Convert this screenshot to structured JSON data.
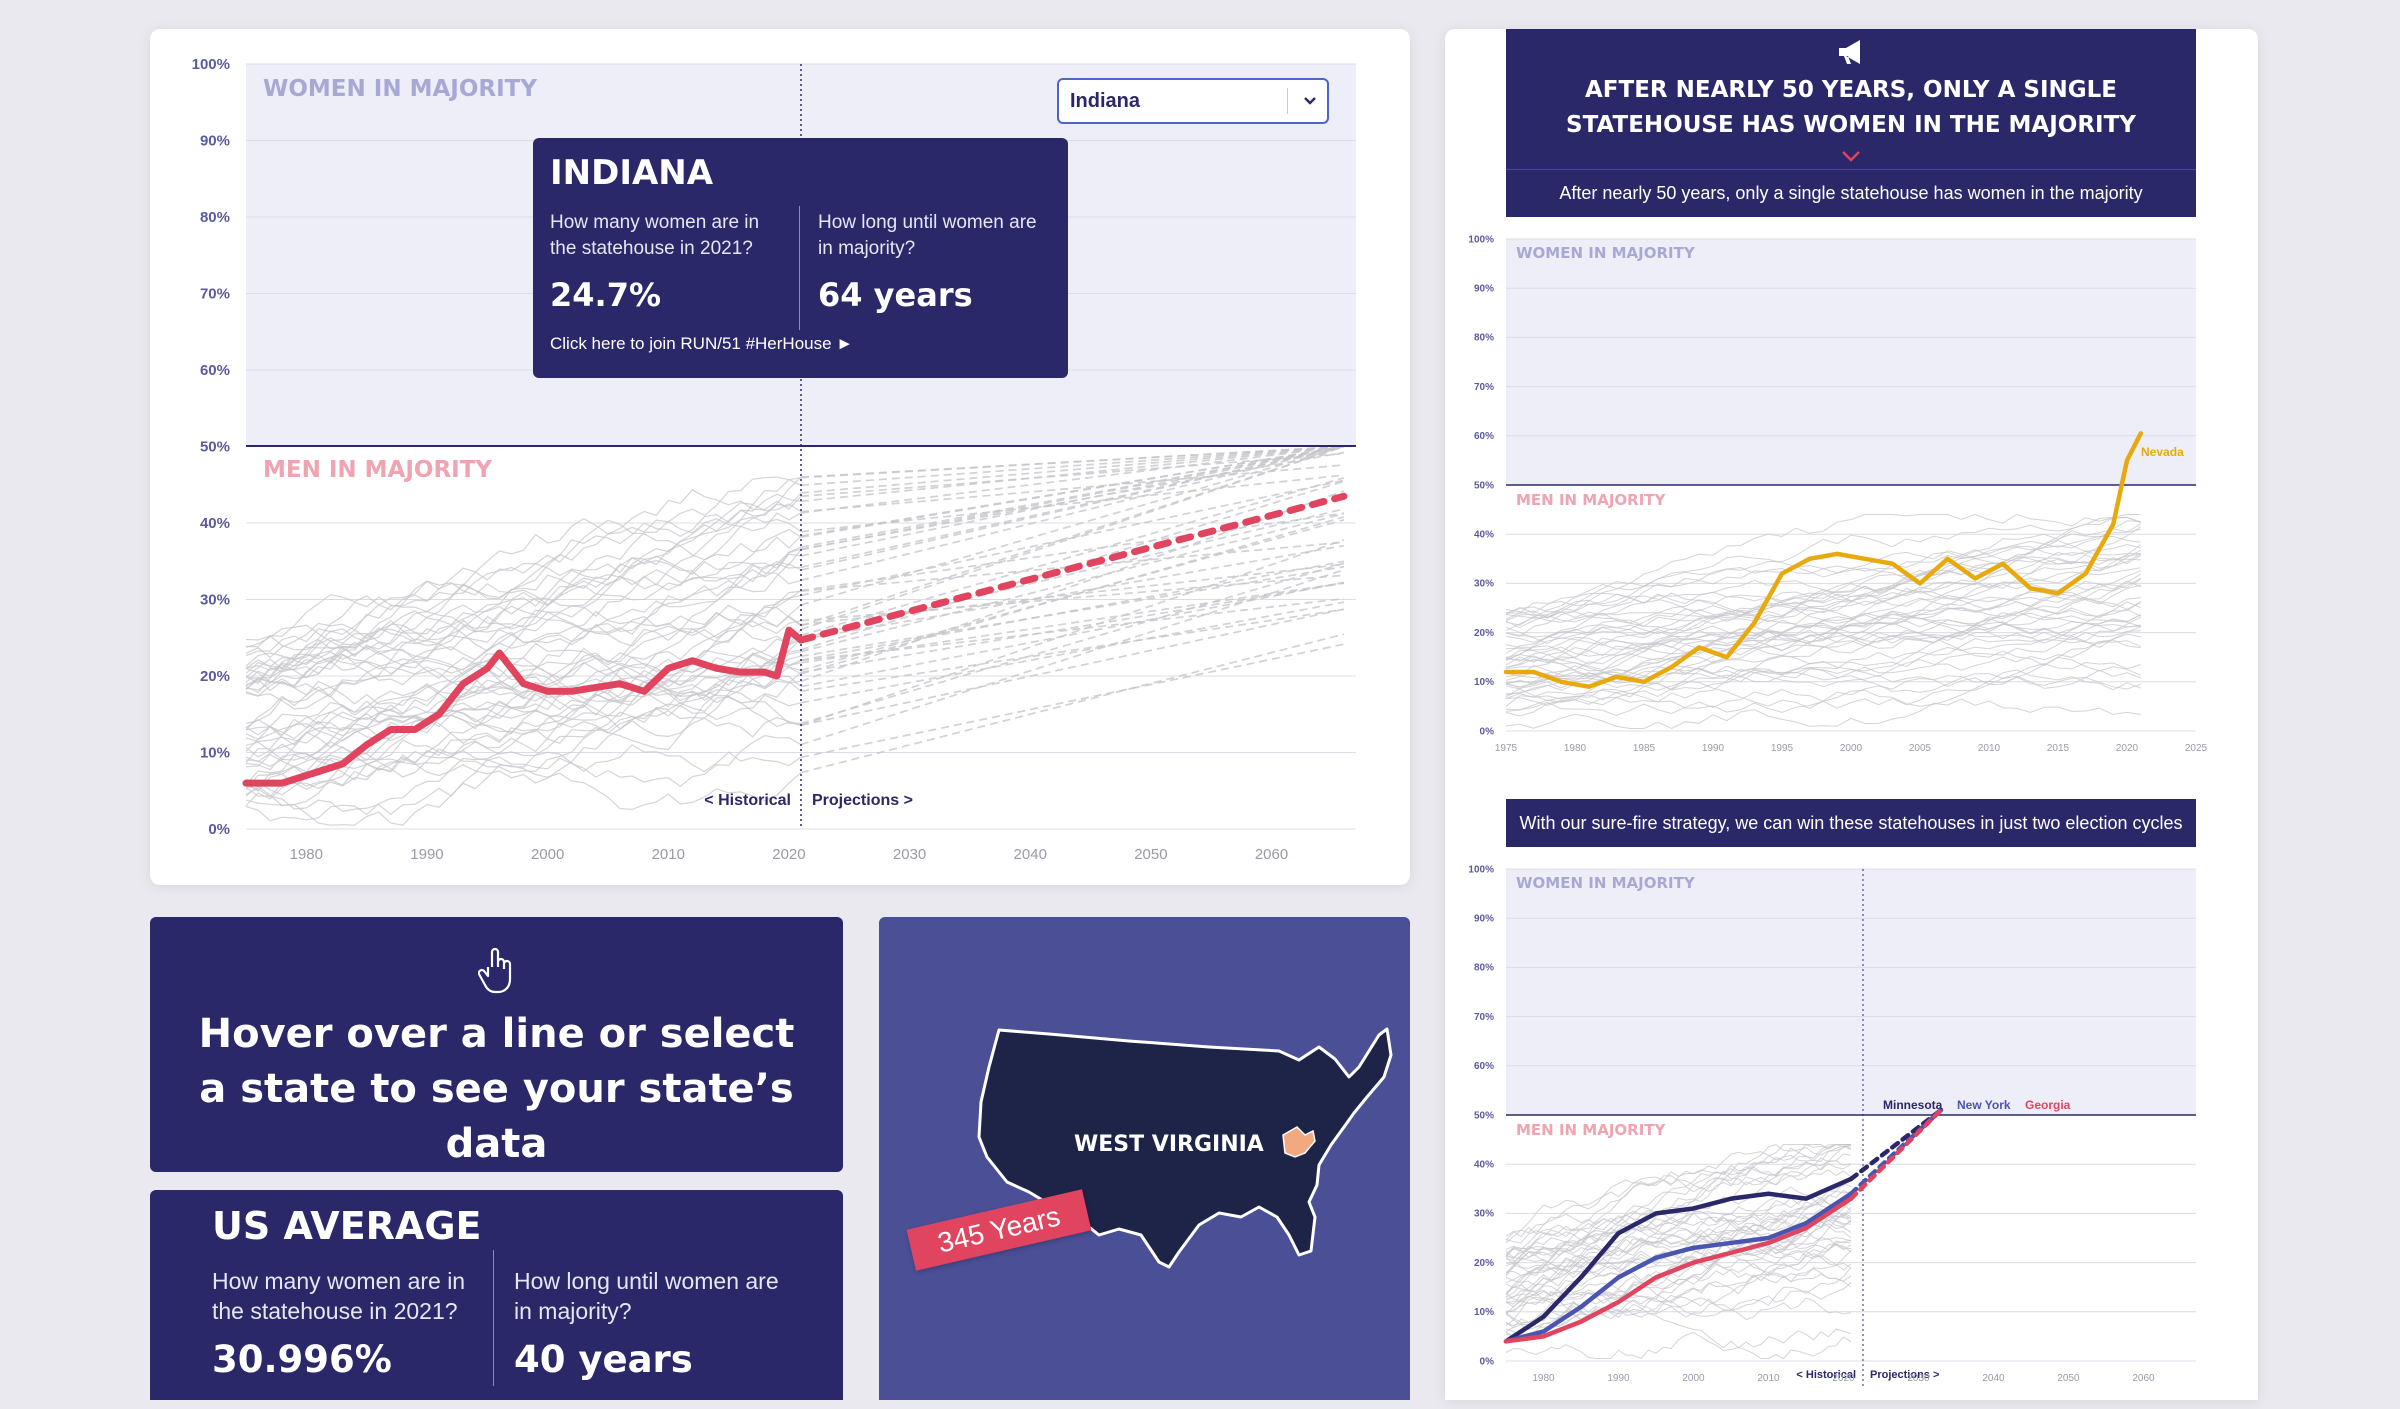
{
  "main_chart": {
    "y_ticks": [
      "100%",
      "90%",
      "80%",
      "70%",
      "60%",
      "50%",
      "40%",
      "30%",
      "20%",
      "10%",
      "0%"
    ],
    "x_ticks": [
      "1980",
      "1990",
      "2000",
      "2010",
      "2020",
      "2030",
      "2040",
      "2050",
      "2060"
    ],
    "women_label": "WOMEN IN MAJORITY",
    "men_label": "MEN IN MAJORITY",
    "historical_label": "< Historical",
    "projections_label": "Projections >",
    "state_select": {
      "value": "Indiana"
    },
    "tooltip": {
      "state": "INDIANA",
      "q1": "How many women are in the statehouse in 2021?",
      "q2": "How long until women are in majority?",
      "a1": "24.7%",
      "a2": "64 years",
      "link": "Click here to join RUN/51 #HerHouse ►"
    },
    "colors": {
      "highlight": "#e0445e",
      "navy": "#2b2869",
      "women_zone": "#eeeef8"
    }
  },
  "hover_panel": {
    "text": "Hover over a line or select a state to see your state’s data"
  },
  "us_average": {
    "title": "US AVERAGE",
    "q1": "How many women are in the statehouse in 2021?",
    "q2": "How long until women are in majority?",
    "a1": "30.996%",
    "a2": "40 years"
  },
  "map_panel": {
    "state": "WEST VIRGINIA",
    "years": "345 Years"
  },
  "right_panel": {
    "heading": "AFTER NEARLY 50 YEARS, ONLY A SINGLE STATEHOUSE HAS WOMEN IN THE MAJORITY",
    "subheading": "After nearly 50 years, only a single statehouse has women in the majority",
    "strategy": "With our sure-fire strategy, we can win these statehouses in just two election cycles",
    "chart1": {
      "y_ticks": [
        "100%",
        "90%",
        "80%",
        "70%",
        "60%",
        "50%",
        "40%",
        "30%",
        "20%",
        "10%",
        "0%"
      ],
      "x_ticks": [
        "1975",
        "1980",
        "1985",
        "1990",
        "1995",
        "2000",
        "2005",
        "2010",
        "2015",
        "2020",
        "2025"
      ],
      "women_label": "WOMEN IN MAJORITY",
      "men_label": "MEN IN MAJORITY",
      "highlight_label": "Nevada"
    },
    "chart2": {
      "y_ticks": [
        "100%",
        "90%",
        "80%",
        "70%",
        "60%",
        "50%",
        "40%",
        "30%",
        "20%",
        "10%",
        "0%"
      ],
      "x_ticks": [
        "1980",
        "1990",
        "2000",
        "2010",
        "2020",
        "2030",
        "2040",
        "2050",
        "2060"
      ],
      "women_label": "WOMEN IN MAJORITY",
      "men_label": "MEN IN MAJORITY",
      "historical_label": "< Historical",
      "projections_label": "Projections >",
      "series_labels": [
        "Minnesota",
        "New York",
        "Georgia"
      ]
    }
  },
  "chart_data": [
    {
      "type": "line",
      "ylim": [
        0,
        100
      ],
      "xlim": [
        1975,
        2067
      ],
      "series": [
        {
          "name": "Indiana",
          "historical": [
            [
              1975,
              6
            ],
            [
              1978,
              6
            ],
            [
              1981,
              7.5
            ],
            [
              1983,
              8.5
            ],
            [
              1985,
              11
            ],
            [
              1987,
              13
            ],
            [
              1989,
              13
            ],
            [
              1991,
              15
            ],
            [
              1993,
              19
            ],
            [
              1995,
              21
            ],
            [
              1996,
              23
            ],
            [
              1998,
              19
            ],
            [
              2000,
              18
            ],
            [
              2002,
              18
            ],
            [
              2004,
              18.5
            ],
            [
              2006,
              19
            ],
            [
              2008,
              18
            ],
            [
              2010,
              21
            ],
            [
              2012,
              22
            ],
            [
              2014,
              21
            ],
            [
              2016,
              20.5
            ],
            [
              2018,
              20.5
            ],
            [
              2019,
              20
            ],
            [
              2020,
              26
            ],
            [
              2021,
              24.7
            ]
          ],
          "projection": [
            [
              2021,
              24.7
            ],
            [
              2066,
              43.5
            ]
          ]
        }
      ]
    },
    {
      "type": "line",
      "ylim": [
        0,
        100
      ],
      "xlim": [
        1975,
        2025
      ],
      "series": [
        {
          "name": "Nevada",
          "values": [
            [
              1975,
              12
            ],
            [
              1977,
              12
            ],
            [
              1979,
              10
            ],
            [
              1981,
              9
            ],
            [
              1983,
              11
            ],
            [
              1985,
              10
            ],
            [
              1987,
              13
            ],
            [
              1989,
              17
            ],
            [
              1991,
              15
            ],
            [
              1993,
              22
            ],
            [
              1995,
              32
            ],
            [
              1997,
              35
            ],
            [
              1999,
              36
            ],
            [
              2001,
              35
            ],
            [
              2003,
              34
            ],
            [
              2005,
              30
            ],
            [
              2007,
              35
            ],
            [
              2009,
              31
            ],
            [
              2011,
              34
            ],
            [
              2013,
              29
            ],
            [
              2015,
              28
            ],
            [
              2017,
              32
            ],
            [
              2019,
              42
            ],
            [
              2020,
              55
            ],
            [
              2021,
              60.5
            ]
          ]
        }
      ]
    },
    {
      "type": "line",
      "ylim": [
        0,
        100
      ],
      "xlim": [
        1975,
        2067
      ],
      "series": [
        {
          "name": "Minnesota",
          "values": [
            [
              1975,
              4
            ],
            [
              1980,
              9
            ],
            [
              1985,
              17
            ],
            [
              1990,
              26
            ],
            [
              1995,
              30
            ],
            [
              2000,
              31
            ],
            [
              2005,
              33
            ],
            [
              2010,
              34
            ],
            [
              2015,
              33
            ],
            [
              2021,
              37
            ]
          ]
        },
        {
          "name": "New York",
          "values": [
            [
              1975,
              4
            ],
            [
              1980,
              6
            ],
            [
              1985,
              11
            ],
            [
              1990,
              17
            ],
            [
              1995,
              21
            ],
            [
              2000,
              23
            ],
            [
              2005,
              24
            ],
            [
              2010,
              25
            ],
            [
              2015,
              28
            ],
            [
              2021,
              34
            ]
          ]
        },
        {
          "name": "Georgia",
          "values": [
            [
              1975,
              4
            ],
            [
              1980,
              5
            ],
            [
              1985,
              8
            ],
            [
              1990,
              12
            ],
            [
              1995,
              17
            ],
            [
              2000,
              20
            ],
            [
              2005,
              22
            ],
            [
              2010,
              24
            ],
            [
              2015,
              27
            ],
            [
              2021,
              33
            ]
          ]
        }
      ]
    }
  ]
}
